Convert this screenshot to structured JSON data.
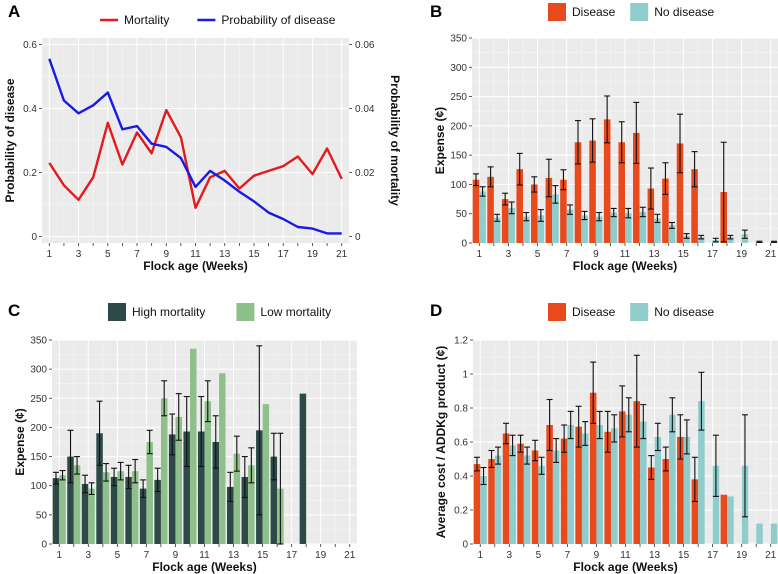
{
  "chart_data": [
    {
      "panel": "A",
      "type": "line",
      "x": [
        1,
        2,
        3,
        4,
        5,
        6,
        7,
        8,
        9,
        10,
        11,
        12,
        13,
        14,
        15,
        16,
        17,
        18,
        19,
        20,
        21
      ],
      "series": [
        {
          "name": "Mortality",
          "axis": "right",
          "color": "#e41a1c",
          "values": [
            0.023,
            0.016,
            0.0115,
            0.0185,
            0.0355,
            0.0225,
            0.0325,
            0.026,
            0.0395,
            0.031,
            0.009,
            0.0185,
            0.0205,
            0.015,
            0.019,
            0.0205,
            0.022,
            0.025,
            0.0195,
            0.0275,
            0.018
          ]
        },
        {
          "name": "Probability of disease",
          "axis": "left",
          "color": "#1a1ae6",
          "values": [
            0.555,
            0.425,
            0.385,
            0.41,
            0.45,
            0.335,
            0.345,
            0.29,
            0.28,
            0.245,
            0.155,
            0.205,
            0.175,
            0.14,
            0.11,
            0.075,
            0.055,
            0.03,
            0.025,
            0.01,
            0.01
          ]
        }
      ],
      "xticks": [
        "1",
        "3",
        "5",
        "7",
        "9",
        "11",
        "13",
        "15",
        "17",
        "19",
        "21"
      ],
      "yticks_left": [
        "0",
        "0.2",
        "0.4",
        "0.6"
      ],
      "yticks_right": [
        "0",
        "0.02",
        "0.04",
        "0.06"
      ],
      "ylim_left": [
        -0.02,
        0.62
      ],
      "ylim_right": [
        -0.002,
        0.062
      ],
      "xlabel": "Flock age (Weeks)",
      "ylabel_left": "Probability of disease",
      "ylabel_right": "Probability of mortality",
      "legend": [
        "Mortality",
        "Probability of disease"
      ]
    },
    {
      "panel": "B",
      "type": "bar",
      "categories": [
        1,
        2,
        3,
        4,
        5,
        6,
        7,
        8,
        9,
        10,
        11,
        12,
        13,
        14,
        15,
        16,
        17,
        18,
        19,
        20,
        21
      ],
      "series": [
        {
          "name": "Disease",
          "color": "#e8491d",
          "values": [
            108,
            113,
            75,
            126,
            100,
            111,
            108,
            172,
            175,
            211,
            172,
            188,
            93,
            110,
            170,
            126,
            0,
            87,
            0,
            0,
            0
          ],
          "errors": [
            10,
            17,
            10,
            27,
            13,
            32,
            17,
            37,
            37,
            40,
            35,
            52,
            35,
            27,
            50,
            30,
            0,
            85,
            0,
            0,
            0
          ]
        },
        {
          "name": "No disease",
          "color": "#90cccc",
          "values": [
            88,
            43,
            60,
            45,
            47,
            83,
            57,
            47,
            45,
            52,
            51,
            53,
            42,
            30,
            12,
            10,
            5,
            10,
            15,
            2,
            2
          ],
          "errors": [
            8,
            6,
            10,
            7,
            10,
            15,
            8,
            7,
            7,
            7,
            8,
            8,
            7,
            5,
            4,
            3,
            3,
            3,
            7,
            1,
            1
          ]
        }
      ],
      "xticks": [
        "1",
        "3",
        "5",
        "7",
        "9",
        "11",
        "13",
        "15",
        "17",
        "19",
        "21"
      ],
      "yticks": [
        "0",
        "50",
        "100",
        "150",
        "200",
        "250",
        "300",
        "350"
      ],
      "ylim": [
        0,
        350
      ],
      "xlabel": "Flock age (Weeks)",
      "ylabel": "Expense (¢)",
      "legend": [
        "Disease",
        "No disease"
      ]
    },
    {
      "panel": "C",
      "type": "bar",
      "categories": [
        1,
        2,
        3,
        4,
        5,
        6,
        7,
        8,
        9,
        10,
        11,
        12,
        13,
        14,
        15,
        16,
        17,
        18,
        19,
        20,
        21
      ],
      "series": [
        {
          "name": "High mortality",
          "color": "#2e4a48",
          "values": [
            113,
            150,
            103,
            190,
            115,
            115,
            95,
            110,
            188,
            193,
            193,
            175,
            98,
            115,
            195,
            150,
            0,
            258,
            0,
            0,
            0
          ],
          "errors": [
            10,
            45,
            15,
            55,
            15,
            20,
            15,
            20,
            35,
            60,
            60,
            45,
            25,
            35,
            145,
            40,
            0,
            0,
            0,
            0,
            0
          ]
        },
        {
          "name": "Low mortality",
          "color": "#8fc08c",
          "values": [
            118,
            135,
            95,
            123,
            125,
            125,
            175,
            250,
            218,
            335,
            245,
            293,
            155,
            135,
            240,
            95,
            0,
            0,
            0,
            0,
            0
          ],
          "errors": [
            8,
            15,
            10,
            15,
            15,
            20,
            20,
            30,
            40,
            0,
            35,
            0,
            30,
            30,
            0,
            95,
            0,
            0,
            0,
            0,
            0
          ]
        }
      ],
      "xticks": [
        "1",
        "3",
        "5",
        "7",
        "9",
        "11",
        "13",
        "15",
        "17",
        "19",
        "21"
      ],
      "yticks": [
        "0",
        "50",
        "100",
        "150",
        "200",
        "250",
        "300",
        "350"
      ],
      "ylim": [
        0,
        350
      ],
      "xlabel": "Flock age (Weeks)",
      "ylabel": "Expense (¢)",
      "legend": [
        "High mortality",
        "Low mortality"
      ]
    },
    {
      "panel": "D",
      "type": "bar",
      "categories": [
        1,
        2,
        3,
        4,
        5,
        6,
        7,
        8,
        9,
        10,
        11,
        12,
        13,
        14,
        15,
        16,
        17,
        18,
        19,
        20,
        21
      ],
      "series": [
        {
          "name": "Disease",
          "color": "#e8491d",
          "values": [
            0.47,
            0.5,
            0.65,
            0.59,
            0.55,
            0.7,
            0.62,
            0.69,
            0.89,
            0.66,
            0.78,
            0.84,
            0.45,
            0.5,
            0.63,
            0.38,
            0,
            0.29,
            0,
            0,
            0
          ],
          "errors": [
            0.04,
            0.05,
            0.06,
            0.05,
            0.06,
            0.15,
            0.08,
            0.12,
            0.18,
            0.12,
            0.15,
            0.27,
            0.07,
            0.07,
            0.13,
            0.13,
            0,
            0,
            0,
            0,
            0
          ]
        },
        {
          "name": "No disease",
          "color": "#90cccc",
          "values": [
            0.4,
            0.52,
            0.58,
            0.52,
            0.46,
            0.55,
            0.7,
            0.65,
            0.7,
            0.68,
            0.76,
            0.72,
            0.63,
            0.76,
            0.63,
            0.84,
            0.46,
            0.28,
            0.46,
            0.12,
            0.12
          ],
          "errors": [
            0.05,
            0.05,
            0.06,
            0.05,
            0.05,
            0.07,
            0.08,
            0.07,
            0.08,
            0.08,
            0.1,
            0.1,
            0.08,
            0.1,
            0.1,
            0.17,
            0.18,
            0.0,
            0.3,
            0.0,
            0.0
          ]
        }
      ],
      "xticks": [
        "1",
        "3",
        "5",
        "7",
        "9",
        "11",
        "13",
        "15",
        "17",
        "19",
        "21"
      ],
      "yticks": [
        "0",
        "0.2",
        "0.4",
        "0.6",
        "0.8",
        "1",
        "1.2"
      ],
      "ylim": [
        0,
        1.2
      ],
      "xlabel": "Flock age (Weeks)",
      "ylabel": "Average cost / ADDKg product (¢)",
      "legend": [
        "Disease",
        "No disease"
      ]
    }
  ]
}
